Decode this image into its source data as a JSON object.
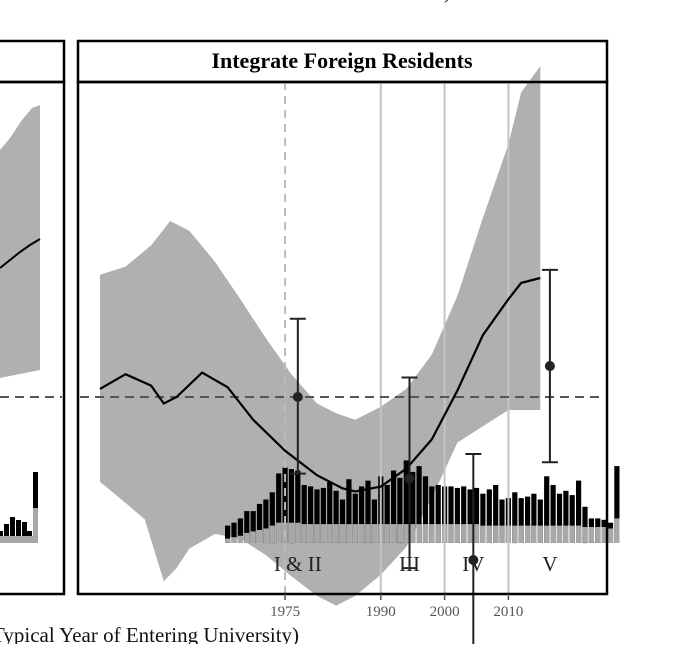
{
  "chart_data": [
    {
      "panel": "left (cropped)",
      "type": "line",
      "xlabel": "Typical Year of Entering University)",
      "top_label": ")"
    },
    {
      "panel": "right",
      "type": "line",
      "title": "Integrate Foreign Residents",
      "xlim": [
        1946,
        2022
      ],
      "x_ticks": [
        1975,
        1990,
        2000,
        2010
      ],
      "x_tick_labels": [
        "1975",
        "1990",
        "2000",
        "2010"
      ],
      "reference_line_dashed_x": 1975,
      "reference_lines_solid_x": [
        1990,
        2000,
        2010
      ],
      "zero_line": "horizontal dashed",
      "periods": [
        {
          "label": "I & II",
          "x": 1977
        },
        {
          "label": "III",
          "x": 1994.5
        },
        {
          "label": "IV",
          "x": 2004.5
        },
        {
          "label": "V",
          "x": 2016.5
        }
      ],
      "smooth_line": [
        [
          1946,
          0.05
        ],
        [
          1950,
          0.14
        ],
        [
          1954,
          0.07
        ],
        [
          1956,
          -0.04
        ],
        [
          1958,
          0.0
        ],
        [
          1962,
          0.15
        ],
        [
          1966,
          0.06
        ],
        [
          1970,
          -0.14
        ],
        [
          1975,
          -0.33
        ],
        [
          1980,
          -0.48
        ],
        [
          1984,
          -0.56
        ],
        [
          1986,
          -0.58
        ],
        [
          1990,
          -0.55
        ],
        [
          1994,
          -0.44
        ],
        [
          1998,
          -0.26
        ],
        [
          2002,
          0.04
        ],
        [
          2006,
          0.38
        ],
        [
          2010,
          0.6
        ],
        [
          2012,
          0.7
        ],
        [
          2015,
          0.73
        ]
      ],
      "confidence_band": {
        "upper": [
          [
            1946,
            0.75
          ],
          [
            1950,
            0.8
          ],
          [
            1954,
            0.93
          ],
          [
            1957,
            1.08
          ],
          [
            1960,
            1.02
          ],
          [
            1964,
            0.83
          ],
          [
            1968,
            0.6
          ],
          [
            1972,
            0.36
          ],
          [
            1976,
            0.14
          ],
          [
            1980,
            -0.04
          ],
          [
            1983,
            -0.1
          ],
          [
            1986,
            -0.14
          ],
          [
            1990,
            -0.06
          ],
          [
            1994,
            0.05
          ],
          [
            1998,
            0.26
          ],
          [
            2002,
            0.62
          ],
          [
            2006,
            1.1
          ],
          [
            2010,
            1.55
          ],
          [
            2012,
            1.87
          ],
          [
            2015,
            2.03
          ]
        ],
        "lower": [
          [
            1946,
            -0.52
          ],
          [
            1950,
            -0.65
          ],
          [
            1953,
            -0.75
          ],
          [
            1956,
            -1.13
          ],
          [
            1958,
            -1.05
          ],
          [
            1960,
            -0.93
          ],
          [
            1964,
            -0.84
          ],
          [
            1968,
            -0.87
          ],
          [
            1972,
            -0.97
          ],
          [
            1976,
            -1.1
          ],
          [
            1980,
            -1.22
          ],
          [
            1983,
            -1.28
          ],
          [
            1986,
            -1.22
          ],
          [
            1990,
            -1.09
          ],
          [
            1994,
            -0.92
          ],
          [
            1998,
            -0.62
          ],
          [
            2002,
            -0.28
          ],
          [
            2006,
            -0.18
          ],
          [
            2010,
            -0.08
          ],
          [
            2015,
            -0.08
          ]
        ]
      },
      "point_estimates": [
        {
          "period": "I & II",
          "x": 1977,
          "estimate": 0.0,
          "ci": [
            -0.47,
            0.48
          ]
        },
        {
          "period": "III",
          "x": 1994.5,
          "estimate": -0.5,
          "ci": [
            -1.05,
            0.12
          ]
        },
        {
          "period": "IV",
          "x": 2004.5,
          "estimate": -1.0,
          "ci": [
            -1.7,
            -0.35
          ]
        },
        {
          "period": "V",
          "x": 2016.5,
          "estimate": 0.19,
          "ci": [
            -0.4,
            0.78
          ]
        }
      ],
      "histogram": {
        "description": "counts of respondents by year of entering university (black = total, grey = subset)",
        "x_start": 1966,
        "x_step": 1,
        "totals": [
          12,
          14,
          17,
          22,
          22,
          27,
          30,
          35,
          48,
          52,
          51,
          50,
          40,
          39,
          37,
          38,
          42,
          36,
          30,
          44,
          34,
          39,
          43,
          30,
          46,
          40,
          50,
          45,
          57,
          49,
          53,
          46,
          39,
          40,
          39,
          39,
          38,
          39,
          37,
          38,
          34,
          37,
          40,
          30,
          31,
          35,
          31,
          32,
          34,
          30,
          46,
          40,
          34,
          36,
          33,
          43,
          25,
          17,
          17,
          16,
          14,
          53
        ],
        "subset": [
          3,
          4,
          5,
          7,
          8,
          9,
          10,
          12,
          14,
          14,
          14,
          14,
          13,
          13,
          13,
          13,
          13,
          13,
          13,
          13,
          13,
          13,
          13,
          13,
          13,
          13,
          13,
          13,
          13,
          13,
          13,
          13,
          13,
          13,
          13,
          13,
          13,
          13,
          13,
          13,
          12,
          12,
          12,
          12,
          12,
          12,
          12,
          12,
          12,
          12,
          12,
          12,
          12,
          12,
          12,
          12,
          11,
          11,
          11,
          11,
          10,
          17
        ]
      }
    }
  ]
}
